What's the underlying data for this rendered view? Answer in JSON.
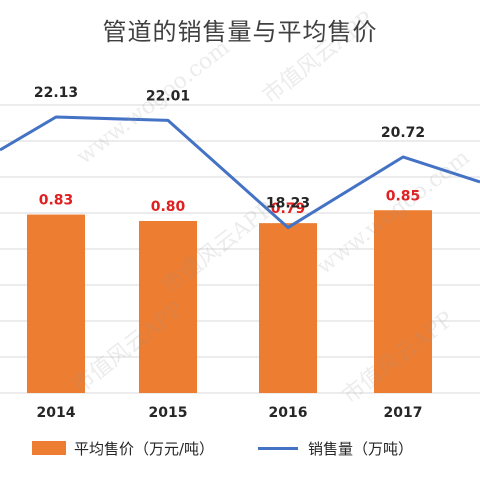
{
  "chart_data": {
    "type": "bar+line",
    "title": "管道的销售量与平均售价",
    "categories": [
      "2014",
      "2015",
      "2016",
      "2017"
    ],
    "series": [
      {
        "name": "平均售价（万元/吨）",
        "kind": "bar",
        "values": [
          0.83,
          0.8,
          0.79,
          0.85
        ],
        "labels": [
          "0.83",
          "0.80",
          "0.79",
          "0.85"
        ],
        "label_color": "#e02020"
      },
      {
        "name": "销售量（万吨）",
        "kind": "line",
        "values": [
          22.13,
          22.01,
          18.23,
          20.72
        ],
        "labels": [
          "22.13",
          "22.01",
          "18.23",
          "20.72"
        ],
        "label_color": "#262626"
      }
    ],
    "grid": true,
    "legend_position": "bottom"
  },
  "colors": {
    "bar": "#ed7d31",
    "line": "#4472c4",
    "grid": "#d9d9d9",
    "bar_label": "#e02020"
  },
  "watermark": {
    "texts": [
      "www.wogoo.com",
      "市值风云APP"
    ]
  }
}
